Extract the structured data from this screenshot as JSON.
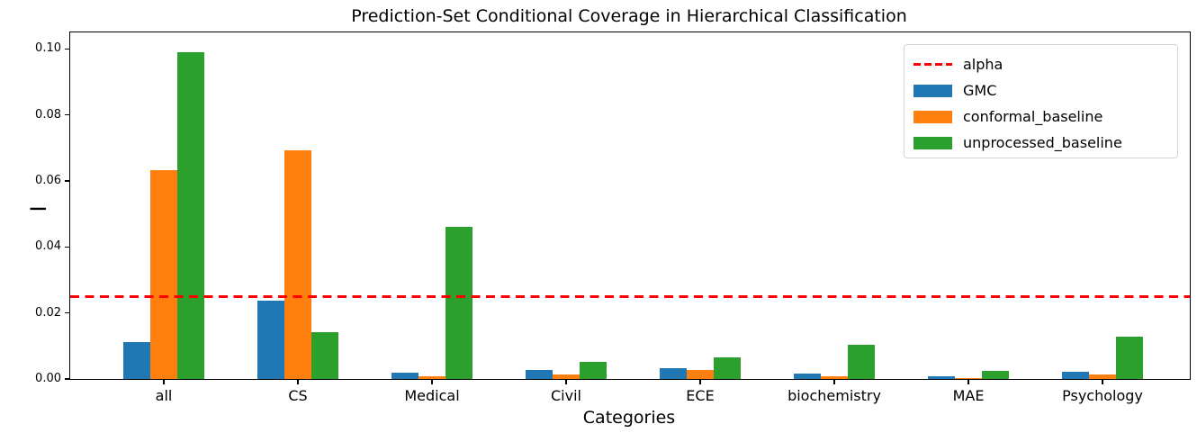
{
  "chart_data": {
    "type": "bar",
    "title": "Prediction-Set Conditional Coverage in Hierarchical Classification",
    "xlabel": "Categories",
    "ylabel": "I",
    "categories": [
      "all",
      "CS",
      "Medical",
      "Civil",
      "ECE",
      "biochemistry",
      "MAE",
      "Psychology"
    ],
    "series": [
      {
        "name": "GMC",
        "color": "#1f77b4",
        "values": [
          0.0113,
          0.0237,
          0.0019,
          0.0026,
          0.0032,
          0.0016,
          0.0008,
          0.0021
        ]
      },
      {
        "name": "conformal_baseline",
        "color": "#ff7f0e",
        "values": [
          0.0633,
          0.0693,
          0.0007,
          0.0014,
          0.0027,
          0.0008,
          0.0002,
          0.0013
        ]
      },
      {
        "name": "unprocessed_baseline",
        "color": "#2ca02c",
        "values": [
          0.099,
          0.0142,
          0.046,
          0.0053,
          0.0066,
          0.0104,
          0.0025,
          0.0128
        ]
      }
    ],
    "reference_line": {
      "name": "alpha",
      "value": 0.025,
      "color": "#ff0000",
      "style": "dashed"
    },
    "y_ticks": [
      0.0,
      0.02,
      0.04,
      0.06,
      0.08,
      0.1
    ],
    "y_tick_labels": [
      "0.00",
      "0.02",
      "0.04",
      "0.06",
      "0.08",
      "0.10"
    ],
    "ylim": [
      0,
      0.1046
    ],
    "grid": false,
    "legend_position": "upper right",
    "legend_entries": [
      "alpha",
      "GMC",
      "conformal_baseline",
      "unprocessed_baseline"
    ]
  }
}
